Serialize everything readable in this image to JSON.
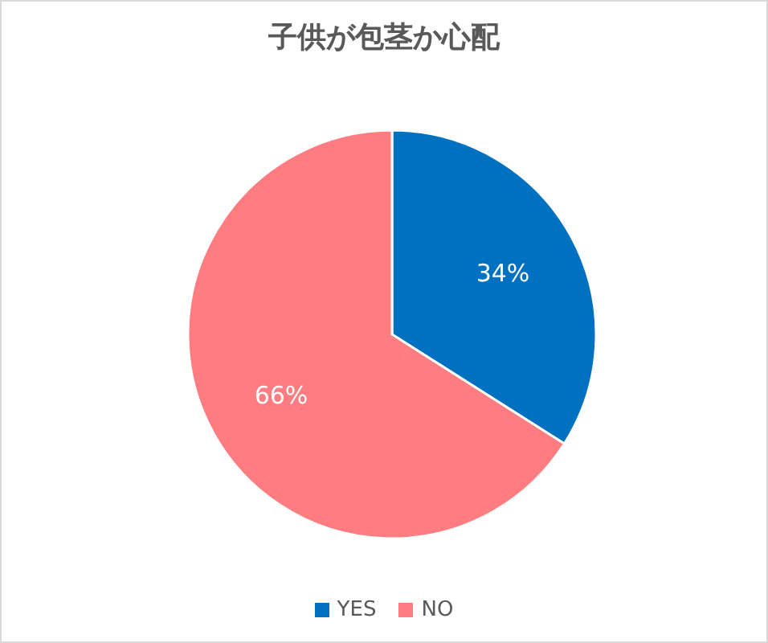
{
  "chart_data": {
    "type": "pie",
    "title": "子供が包茎か心配",
    "categories": [
      "YES",
      "NO"
    ],
    "values": [
      34,
      66
    ],
    "colors": [
      "#0070c0",
      "#ff7c80"
    ],
    "value_labels": [
      "34%",
      "66%"
    ],
    "legend": "bottom"
  }
}
